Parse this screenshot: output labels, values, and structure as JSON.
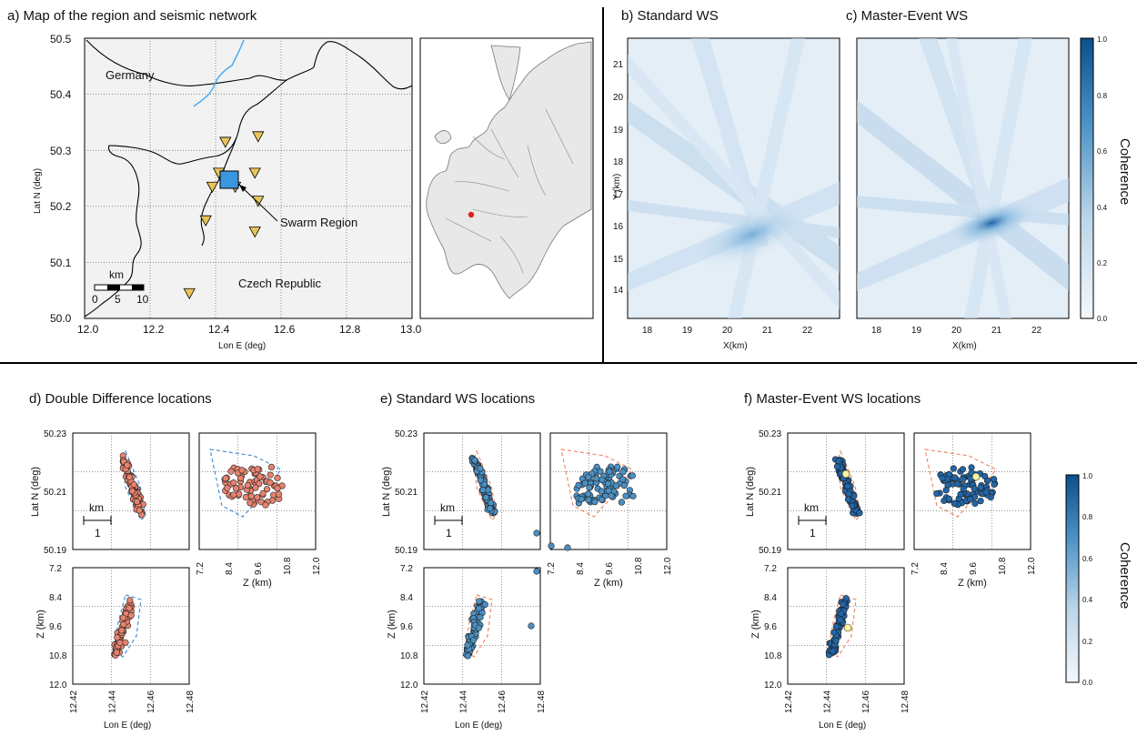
{
  "panels": {
    "a": {
      "title": "a) Map of the region and seismic network"
    },
    "b": {
      "title": "b) Standard WS"
    },
    "c": {
      "title": "c) Master-Event WS"
    },
    "d": {
      "title": "d) Double Difference locations"
    },
    "e": {
      "title": "e) Standard WS locations"
    },
    "f": {
      "title": "f) Master-Event WS locations"
    }
  },
  "map": {
    "xlabel": "Lon E (deg)",
    "ylabel": "Lat N (deg)",
    "xticks": [
      "12.0",
      "12.2",
      "12.4",
      "12.6",
      "12.8",
      "13.0"
    ],
    "yticks": [
      "50.5",
      "50.4",
      "50.3",
      "50.2",
      "50.1",
      "50.0"
    ],
    "labels": {
      "germany": "Germany",
      "czech": "Czech Republic",
      "swarm": "Swarm Region"
    },
    "scalebar": {
      "unit": "km",
      "ticks": [
        "0",
        "5",
        "10"
      ]
    },
    "stations": [
      [
        12.43,
        50.315
      ],
      [
        12.53,
        50.325
      ],
      [
        12.41,
        50.26
      ],
      [
        12.52,
        50.26
      ],
      [
        12.39,
        50.235
      ],
      [
        12.46,
        50.235
      ],
      [
        12.53,
        50.21
      ],
      [
        12.37,
        50.175
      ],
      [
        12.52,
        50.155
      ],
      [
        12.32,
        50.045
      ]
    ],
    "swarm_box": [
      12.43,
      50.19,
      12.49,
      50.215
    ]
  },
  "coherence_maps": {
    "xlabel": "X(km)",
    "ylabel": "Y (km)",
    "xticks": [
      "18",
      "19",
      "20",
      "21",
      "22"
    ],
    "yticks": [
      "21",
      "20",
      "19",
      "18",
      "17",
      "16",
      "15",
      "14"
    ],
    "colorbar_label": "Coherence",
    "colorbar_ticks": [
      "1.0",
      "0.8",
      "0.6",
      "0.4",
      "0.2",
      "0.0"
    ]
  },
  "locations": {
    "ylabel_lat": "Lat N (deg)",
    "ylabel_z": "Z (km)",
    "xlabel_lon": "Lon E (deg)",
    "xlabel_z": "Z (km)",
    "lat_ticks": [
      "50.23",
      "50.21",
      "50.19"
    ],
    "z_ticks": [
      "7.2",
      "8.4",
      "9.6",
      "10.8",
      "12.0"
    ],
    "lon_ticks": [
      "12.42",
      "12.44",
      "12.46",
      "12.48"
    ],
    "zx_ticks": [
      "7.2",
      "8.4",
      "9.6",
      "10.8",
      "12.0"
    ],
    "scale_unit": "km",
    "scale_value": "1",
    "colorbar_label": "Coherence",
    "colorbar_ticks": [
      "1.0",
      "0.8",
      "0.6",
      "0.4",
      "0.2",
      "0.0"
    ]
  },
  "colors": {
    "dd_points": "#e8826e",
    "ws_points": "#4a90c4",
    "me_points": "#2166a8",
    "stations": "#e8c45a",
    "swarm_box": "#3a96e0",
    "river": "#4aaaf0",
    "outline_dashed": "#f08a6a",
    "hull_dd": "#4a90d4",
    "map_bg": "#f2f2f2"
  }
}
